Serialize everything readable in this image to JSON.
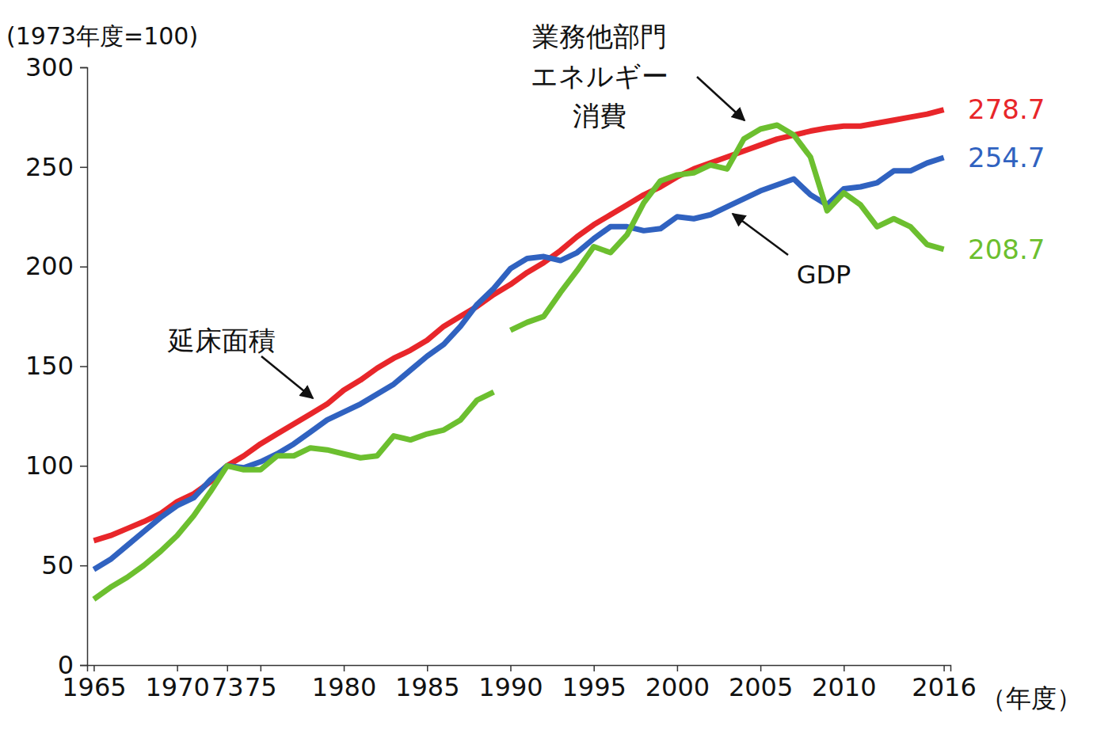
{
  "chart_data": {
    "type": "line",
    "ylabel": "(1973年度=100)",
    "xlabel": "（年度）",
    "x": [
      1965,
      1966,
      1967,
      1968,
      1969,
      1970,
      1971,
      1972,
      1973,
      1974,
      1975,
      1976,
      1977,
      1978,
      1979,
      1980,
      1981,
      1982,
      1983,
      1984,
      1985,
      1986,
      1987,
      1988,
      1989,
      1990,
      1991,
      1992,
      1993,
      1994,
      1995,
      1996,
      1997,
      1998,
      1999,
      2000,
      2001,
      2002,
      2003,
      2004,
      2005,
      2006,
      2007,
      2008,
      2009,
      2010,
      2011,
      2012,
      2013,
      2014,
      2015,
      2016
    ],
    "xlim": [
      1964.6,
      2016.4
    ],
    "xticks": [
      1965,
      1970,
      {
        "value": 1973,
        "label": "73"
      },
      {
        "value": 1975,
        "label": "75"
      },
      1980,
      1985,
      1990,
      1995,
      2000,
      2005,
      2010,
      2016
    ],
    "ylim": [
      0,
      300
    ],
    "yticks": [
      0,
      50,
      100,
      150,
      200,
      250,
      300
    ],
    "grid": false,
    "series": [
      {
        "name": "延床面積",
        "color": "#e8262a",
        "values": [
          62.4,
          65,
          68.5,
          72,
          76,
          82,
          86,
          92,
          100,
          105,
          111,
          116,
          121,
          126,
          131,
          138,
          143,
          149,
          154,
          158,
          163,
          170,
          175,
          180,
          186,
          191,
          197,
          202,
          208,
          215,
          221,
          226,
          231,
          236,
          240,
          245,
          249,
          252,
          255,
          258,
          261,
          264,
          266,
          268,
          269.5,
          270.5,
          270.5,
          272,
          273.5,
          275,
          276.5,
          278.7
        ]
      },
      {
        "name": "GDP",
        "color": "#3062c0",
        "values": [
          48,
          53,
          60,
          67,
          74,
          80,
          84,
          93,
          100,
          99,
          102,
          106,
          111,
          117,
          123,
          127,
          131,
          136,
          141,
          148,
          155,
          161,
          170,
          181,
          189,
          199,
          204,
          205,
          203,
          207,
          214,
          220,
          220,
          218,
          219,
          225,
          224,
          226,
          230,
          234,
          238,
          241,
          244,
          236,
          231,
          239,
          240,
          242,
          248,
          248,
          252,
          254.7
        ]
      },
      {
        "name": "業務他部門エネルギー消費",
        "color": "#6cbf2f",
        "x": [
          1965,
          1966,
          1967,
          1968,
          1969,
          1970,
          1971,
          1972,
          1973,
          1974,
          1975,
          1976,
          1977,
          1978,
          1979,
          1980,
          1981,
          1982,
          1983,
          1984,
          1985,
          1986,
          1987,
          1988,
          1989
        ],
        "values": [
          33,
          39,
          44,
          50,
          57,
          65,
          75,
          87,
          100,
          98,
          98,
          105,
          105,
          109,
          108,
          106,
          104,
          105,
          115,
          113,
          116,
          118,
          123,
          133,
          137
        ]
      },
      {
        "name": "業務他部門エネルギー消費",
        "color": "#6cbf2f",
        "x": [
          1990,
          1991,
          1992,
          1993,
          1994,
          1995,
          1996,
          1997,
          1998,
          1999,
          2000,
          2001,
          2002,
          2003,
          2004,
          2005,
          2006,
          2007,
          2008,
          2009,
          2010,
          2011,
          2012,
          2013,
          2014,
          2015,
          2016
        ],
        "values": [
          168,
          172,
          175,
          187,
          198,
          210,
          207,
          216,
          232,
          243,
          246,
          247,
          251,
          249,
          264,
          269,
          271,
          266,
          255,
          228,
          237,
          231,
          220,
          224,
          220,
          211,
          208.7
        ]
      }
    ],
    "annotations": [
      {
        "text": [
          "延床面積"
        ]
      },
      {
        "text": [
          "業務他部門",
          "エネルギー",
          "消費"
        ]
      },
      {
        "text": [
          "GDP"
        ]
      },
      {
        "text": [
          "278.7"
        ],
        "color": "#e8262a"
      },
      {
        "text": [
          "254.7"
        ],
        "color": "#3062c0"
      },
      {
        "text": [
          "208.7"
        ],
        "color": "#6cbf2f"
      }
    ]
  }
}
